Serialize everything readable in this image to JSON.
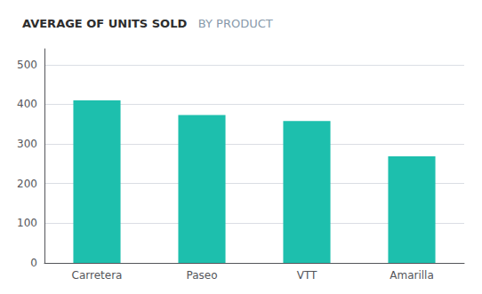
{
  "chart_data": {
    "type": "bar",
    "title": "AVERAGE OF UNITS SOLD",
    "subtitle": "BY PRODUCT",
    "categories": [
      "Carretera",
      "Paseo",
      "VTT",
      "Amarilla"
    ],
    "values": [
      410,
      373,
      358,
      269
    ],
    "color": "#1DBFAD",
    "ylim": [
      0,
      540
    ],
    "yticks": [
      0,
      100,
      200,
      300,
      400,
      500
    ],
    "grid": true
  }
}
